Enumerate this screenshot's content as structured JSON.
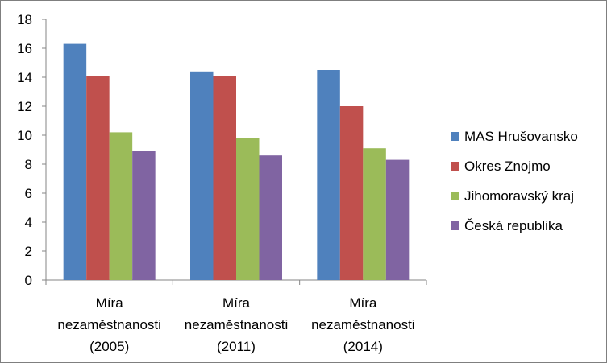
{
  "chart_data": {
    "type": "bar",
    "categories": [
      [
        "Míra",
        "nezaměstnanosti",
        "(2005)"
      ],
      [
        "Míra",
        "nezaměstnanosti",
        "(2011)"
      ],
      [
        "Míra",
        "nezaměstnanosti",
        "(2014)"
      ]
    ],
    "series": [
      {
        "name": "MAS Hrušovansko",
        "color": "#4f81bd",
        "values": [
          16.3,
          14.4,
          14.5
        ]
      },
      {
        "name": "Okres Znojmo",
        "color": "#c0504d",
        "values": [
          14.1,
          14.1,
          12.0
        ]
      },
      {
        "name": "Jihomoravský kraj",
        "color": "#9bbb59",
        "values": [
          10.2,
          9.8,
          9.1
        ]
      },
      {
        "name": "Česká republika",
        "color": "#8064a2",
        "values": [
          8.9,
          8.6,
          8.3
        ]
      }
    ],
    "ylim": [
      0,
      18
    ],
    "yticks": [
      0,
      2,
      4,
      6,
      8,
      10,
      12,
      14,
      16,
      18
    ],
    "grid": false,
    "legend_position": "right"
  }
}
